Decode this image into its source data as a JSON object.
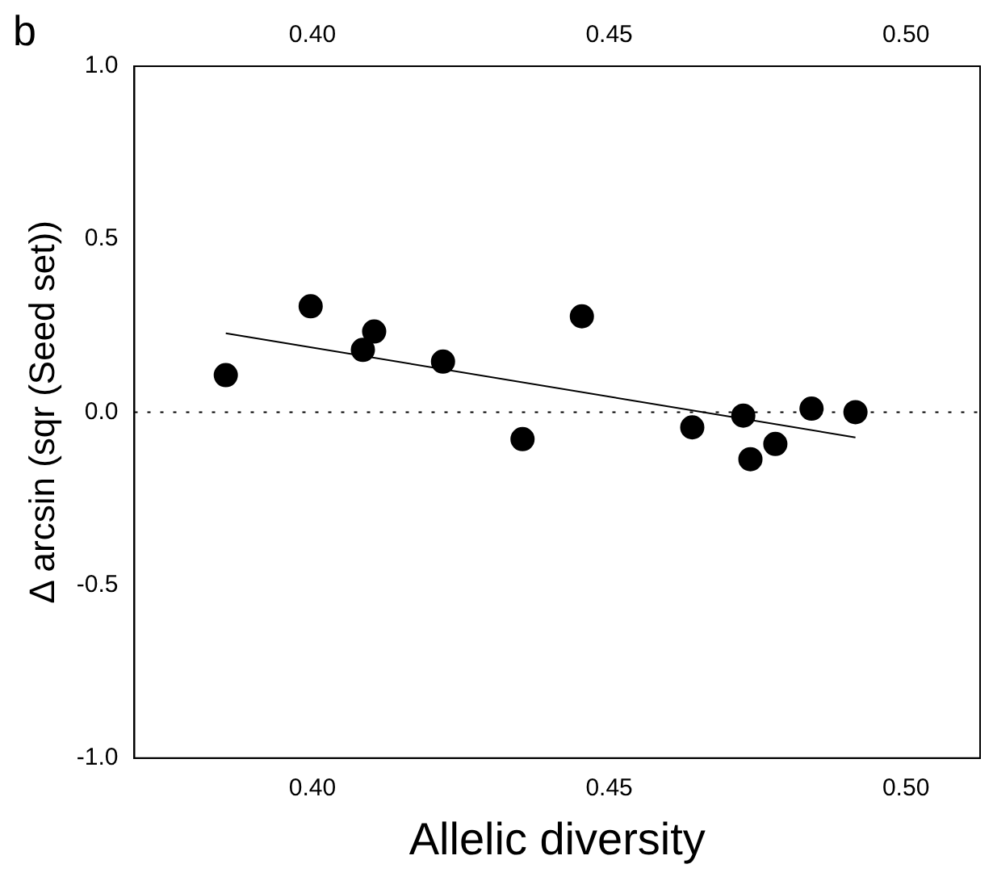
{
  "chart_data": {
    "type": "scatter",
    "xlabel": "Allelic diversity",
    "ylabel": "Δ arcsin (sqr (Seed set))",
    "annotations": [
      "b"
    ],
    "xlim": [
      0.37,
      0.5125
    ],
    "ylim": [
      -1.0,
      1.0
    ],
    "xticks": [
      {
        "value": 0.4,
        "label": "0.40"
      },
      {
        "value": 0.45,
        "label": "0.45"
      },
      {
        "value": 0.5,
        "label": "0.50"
      }
    ],
    "x2lim": [
      0.37,
      0.5125
    ],
    "x2ticks": [
      {
        "value": 0.4,
        "label": "0.40"
      },
      {
        "value": 0.45,
        "label": "0.45"
      },
      {
        "value": 0.5,
        "label": "0.50"
      }
    ],
    "yticks": [
      {
        "value": -1.0,
        "label": "-1.0"
      },
      {
        "value": -0.5,
        "label": "-0.5"
      },
      {
        "value": 0,
        "label": "0.0"
      },
      {
        "value": 0.5,
        "label": "0.5"
      },
      {
        "value": 1.0,
        "label": "1.0"
      }
    ],
    "marker": "circle",
    "grid": false,
    "legend": false,
    "series": [
      {
        "type": "scatter",
        "color": "#000000",
        "x": [
          0.3854,
          0.3997,
          0.4085,
          0.4104,
          0.422,
          0.4354,
          0.4454,
          0.464,
          0.4726,
          0.4738,
          0.478,
          0.4841,
          0.4915
        ],
        "values": [
          0.107,
          0.306,
          0.18,
          0.233,
          0.146,
          -0.078,
          0.277,
          -0.044,
          -0.01,
          -0.136,
          -0.092,
          0.01,
          0.0
        ]
      },
      {
        "type": "line",
        "color": "#000000",
        "x": [
          0.3854,
          0.4915
        ],
        "values": [
          0.228,
          -0.073
        ],
        "marker": "none",
        "line_style": "solid"
      }
    ],
    "ref_lines": [
      {
        "axis": "y",
        "value": 0,
        "color": "#000000",
        "line_style": "dotted"
      }
    ]
  }
}
